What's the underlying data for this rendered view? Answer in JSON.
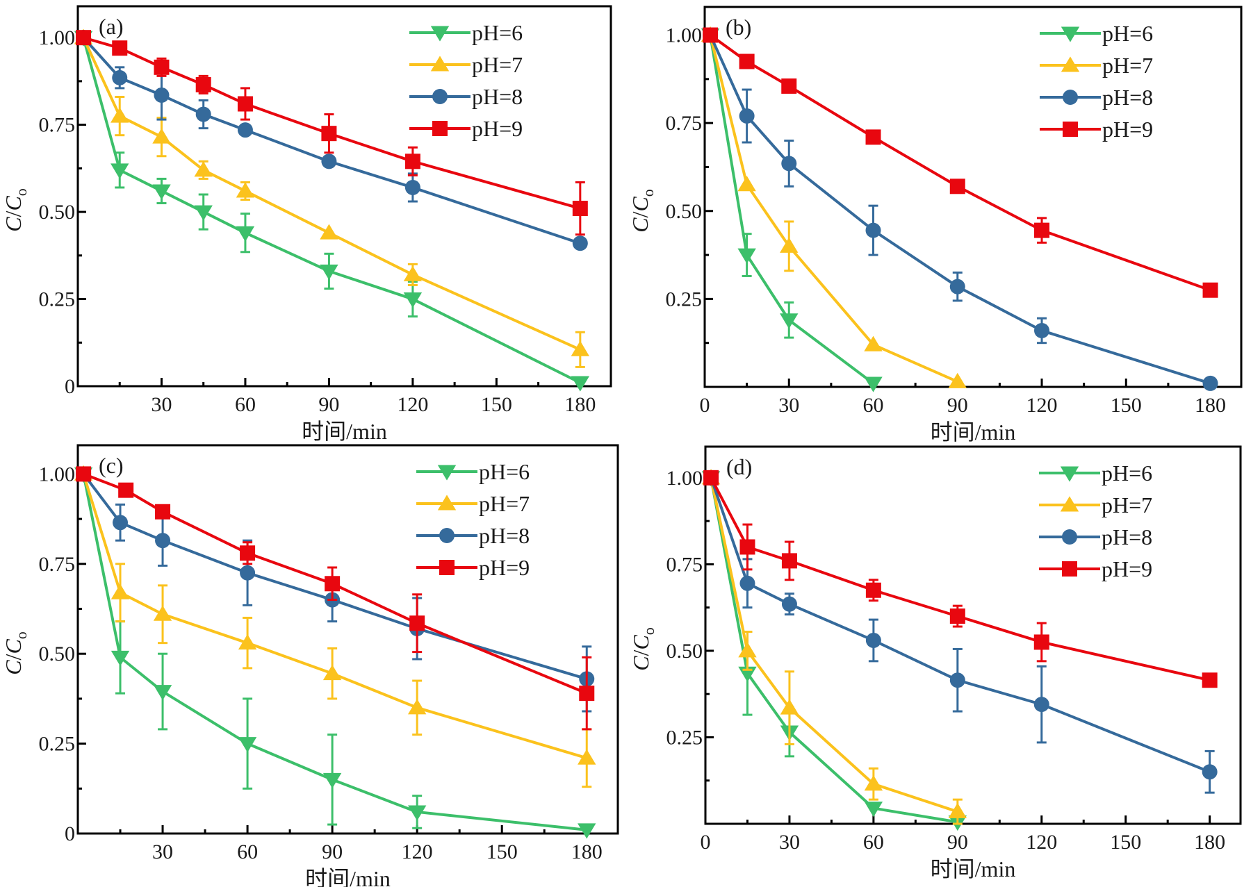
{
  "chart_data": [
    {
      "type": "line",
      "panel_label": "(a)",
      "xlabel": "时间/min",
      "ylabel_main": "C",
      "ylabel_sub": "o",
      "xlim": [
        0,
        191
      ],
      "ylim": [
        0,
        1.09
      ],
      "xticks": [
        30,
        60,
        90,
        120,
        150,
        180
      ],
      "xtick_labels": [
        "30",
        "60",
        "90",
        "120",
        "150",
        "180"
      ],
      "yticks": [
        0,
        0.25,
        0.5,
        0.75,
        1.0
      ],
      "ytick_labels": [
        "0",
        "0.25",
        "0.50",
        "0.75",
        "1.00"
      ],
      "legend_position": "top-right",
      "series": [
        {
          "name": "pH=6",
          "color": "#3cbf6a",
          "marker": "triangle-down",
          "x": [
            2,
            15,
            30,
            45,
            60,
            90,
            120,
            180
          ],
          "y": [
            1.0,
            0.62,
            0.56,
            0.5,
            0.44,
            0.33,
            0.25,
            0.01
          ],
          "err": [
            0,
            0.05,
            0.035,
            0.05,
            0.055,
            0.05,
            0.05,
            0
          ]
        },
        {
          "name": "pH=7",
          "color": "#fbc21d",
          "marker": "triangle-up",
          "x": [
            2,
            15,
            30,
            45,
            60,
            90,
            120,
            180
          ],
          "y": [
            1.0,
            0.775,
            0.715,
            0.62,
            0.56,
            0.44,
            0.32,
            0.105
          ],
          "err": [
            0,
            0.055,
            0.055,
            0.025,
            0.025,
            0,
            0.03,
            0.05
          ]
        },
        {
          "name": "pH=8",
          "color": "#356a9b",
          "marker": "circle",
          "x": [
            2,
            15,
            30,
            45,
            60,
            90,
            120,
            180
          ],
          "y": [
            1.0,
            0.885,
            0.835,
            0.78,
            0.735,
            0.645,
            0.57,
            0.41
          ],
          "err": [
            0,
            0.03,
            0.07,
            0.04,
            0,
            0,
            0.04,
            0
          ]
        },
        {
          "name": "pH=9",
          "color": "#e8070f",
          "marker": "square",
          "x": [
            2,
            15,
            30,
            45,
            60,
            90,
            120,
            180
          ],
          "y": [
            1.0,
            0.97,
            0.915,
            0.865,
            0.81,
            0.725,
            0.645,
            0.51
          ],
          "err": [
            0,
            0,
            0.025,
            0.025,
            0.045,
            0.055,
            0.04,
            0.075
          ]
        }
      ]
    },
    {
      "type": "line",
      "panel_label": "(b)",
      "xlabel": "时间/min",
      "ylabel_main": "C",
      "ylabel_sub": "o",
      "xlim": [
        0,
        191
      ],
      "ylim": [
        0,
        1.08
      ],
      "xticks": [
        0,
        30,
        60,
        90,
        120,
        150,
        180
      ],
      "xtick_labels": [
        "0",
        "30",
        "60",
        "90",
        "120",
        "150",
        "180"
      ],
      "yticks": [
        0.25,
        0.5,
        0.75,
        1.0
      ],
      "ytick_labels": [
        "0.25",
        "0.50",
        "0.75",
        "1.00"
      ],
      "legend_position": "top-right",
      "series": [
        {
          "name": "pH=6",
          "color": "#3cbf6a",
          "marker": "triangle-down",
          "x": [
            2,
            15,
            30,
            60
          ],
          "y": [
            1.0,
            0.375,
            0.19,
            0.01
          ],
          "err": [
            0,
            0.06,
            0.05,
            0
          ]
        },
        {
          "name": "pH=7",
          "color": "#fbc21d",
          "marker": "triangle-up",
          "x": [
            2,
            15,
            30,
            60,
            90
          ],
          "y": [
            1.0,
            0.575,
            0.4,
            0.12,
            0.015
          ],
          "err": [
            0,
            0,
            0.07,
            0,
            0
          ]
        },
        {
          "name": "pH=8",
          "color": "#356a9b",
          "marker": "circle",
          "x": [
            2,
            15,
            30,
            60,
            90,
            120,
            180
          ],
          "y": [
            1.0,
            0.77,
            0.635,
            0.445,
            0.285,
            0.16,
            0.01
          ],
          "err": [
            0,
            0.075,
            0.065,
            0.07,
            0.04,
            0.035,
            0
          ]
        },
        {
          "name": "pH=9",
          "color": "#e8070f",
          "marker": "square",
          "x": [
            2,
            15,
            30,
            60,
            90,
            120,
            180
          ],
          "y": [
            1.0,
            0.925,
            0.855,
            0.71,
            0.57,
            0.445,
            0.275
          ],
          "err": [
            0,
            0,
            0,
            0,
            0.015,
            0.035,
            0
          ]
        }
      ]
    },
    {
      "type": "line",
      "panel_label": "(c)",
      "xlabel": "时间/min",
      "ylabel_main": "C",
      "ylabel_sub": "o",
      "xlim": [
        0,
        191
      ],
      "ylim": [
        0,
        1.08
      ],
      "xticks": [
        30,
        60,
        90,
        120,
        150,
        180
      ],
      "xtick_labels": [
        "30",
        "60",
        "90",
        "120",
        "150",
        "180"
      ],
      "yticks": [
        0,
        0.25,
        0.5,
        0.75,
        1.0
      ],
      "ytick_labels": [
        "0",
        "0.25",
        "0.50",
        "0.75",
        "1.00"
      ],
      "legend_position": "top-right",
      "series": [
        {
          "name": "pH=6",
          "color": "#3cbf6a",
          "marker": "triangle-down",
          "x": [
            2,
            15,
            30,
            60,
            90,
            120,
            180
          ],
          "y": [
            1.0,
            0.49,
            0.395,
            0.25,
            0.15,
            0.06,
            0.01
          ],
          "err": [
            0,
            0.1,
            0.105,
            0.125,
            0.125,
            0.045,
            0
          ]
        },
        {
          "name": "pH=7",
          "color": "#fbc21d",
          "marker": "triangle-up",
          "x": [
            2,
            15,
            30,
            60,
            90,
            120,
            180
          ],
          "y": [
            1.0,
            0.67,
            0.61,
            0.53,
            0.445,
            0.35,
            0.21
          ],
          "err": [
            0,
            0.08,
            0.08,
            0.07,
            0.07,
            0.075,
            0.08
          ]
        },
        {
          "name": "pH=8",
          "color": "#356a9b",
          "marker": "circle",
          "x": [
            2,
            15,
            30,
            60,
            90,
            120,
            180
          ],
          "y": [
            1.0,
            0.865,
            0.815,
            0.725,
            0.65,
            0.57,
            0.43
          ],
          "err": [
            0,
            0.05,
            0.07,
            0.09,
            0.06,
            0.085,
            0.09
          ]
        },
        {
          "name": "pH=9",
          "color": "#e8070f",
          "marker": "square",
          "x": [
            2,
            17,
            30,
            60,
            90,
            120,
            180
          ],
          "y": [
            1.0,
            0.955,
            0.895,
            0.78,
            0.695,
            0.585,
            0.39
          ],
          "err": [
            0,
            0,
            0,
            0.03,
            0.045,
            0.08,
            0.1
          ]
        }
      ]
    },
    {
      "type": "line",
      "panel_label": "(d)",
      "xlabel": "时间/min",
      "ylabel_main": "C",
      "ylabel_sub": "o",
      "xlim": [
        0,
        191
      ],
      "ylim": [
        0,
        1.09
      ],
      "xticks": [
        0,
        30,
        60,
        90,
        120,
        150,
        180
      ],
      "xtick_labels": [
        "0",
        "30",
        "60",
        "90",
        "120",
        "150",
        "180"
      ],
      "yticks": [
        0.25,
        0.5,
        0.75,
        1.0
      ],
      "ytick_labels": [
        "0.25",
        "0.50",
        "0.75",
        "1.00"
      ],
      "legend_position": "top-right",
      "series": [
        {
          "name": "pH=6",
          "color": "#3cbf6a",
          "marker": "triangle-down",
          "x": [
            2,
            15,
            30,
            60,
            90
          ],
          "y": [
            1.0,
            0.435,
            0.265,
            0.045,
            0.005
          ],
          "err": [
            0,
            0.12,
            0.07,
            0,
            0
          ]
        },
        {
          "name": "pH=7",
          "color": "#fbc21d",
          "marker": "triangle-up",
          "x": [
            2,
            15,
            30,
            60,
            90
          ],
          "y": [
            1.0,
            0.5,
            0.335,
            0.115,
            0.035
          ],
          "err": [
            0,
            0.055,
            0.105,
            0.045,
            0.035
          ]
        },
        {
          "name": "pH=8",
          "color": "#356a9b",
          "marker": "circle",
          "x": [
            2,
            15,
            30,
            60,
            90,
            120,
            180
          ],
          "y": [
            1.0,
            0.695,
            0.635,
            0.53,
            0.415,
            0.345,
            0.15
          ],
          "err": [
            0,
            0.07,
            0.03,
            0.06,
            0.09,
            0.11,
            0.06
          ]
        },
        {
          "name": "pH=9",
          "color": "#e8070f",
          "marker": "square",
          "x": [
            2,
            15,
            30,
            60,
            90,
            120,
            180
          ],
          "y": [
            1.0,
            0.8,
            0.76,
            0.675,
            0.6,
            0.525,
            0.415
          ],
          "err": [
            0,
            0.065,
            0.055,
            0.03,
            0.03,
            0.055,
            0.015
          ]
        }
      ]
    }
  ]
}
